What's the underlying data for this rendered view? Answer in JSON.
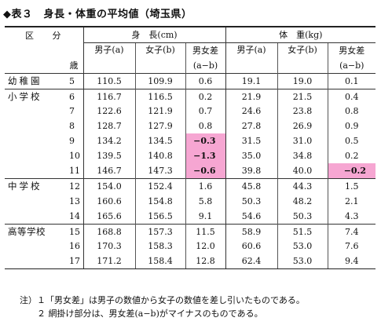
{
  "title": {
    "marker": "◆表３",
    "text": "身長・体重の平均値（埼玉県）"
  },
  "header": {
    "kubun": "区 分",
    "sai": "歳",
    "height_group": "身　長(cm)",
    "weight_group": "体　重(kg)",
    "boys": "男子(a)",
    "girls": "女子(b)",
    "diff": "男女差",
    "diff_sub": "(a−b)"
  },
  "groups": [
    "幼稚園",
    "小学校",
    "中学校",
    "高等学校"
  ],
  "rows": [
    {
      "age": "5",
      "h_boy": "110.5",
      "h_girl": "109.9",
      "h_diff": "0.6",
      "w_boy": "19.1",
      "w_girl": "19.0",
      "w_diff": "0.1"
    },
    {
      "age": "6",
      "h_boy": "116.7",
      "h_girl": "116.5",
      "h_diff": "0.2",
      "w_boy": "21.9",
      "w_girl": "21.5",
      "w_diff": "0.4"
    },
    {
      "age": "7",
      "h_boy": "122.6",
      "h_girl": "121.9",
      "h_diff": "0.7",
      "w_boy": "24.6",
      "w_girl": "23.8",
      "w_diff": "0.8"
    },
    {
      "age": "8",
      "h_boy": "128.7",
      "h_girl": "127.9",
      "h_diff": "0.8",
      "w_boy": "27.8",
      "w_girl": "26.9",
      "w_diff": "0.9"
    },
    {
      "age": "9",
      "h_boy": "134.2",
      "h_girl": "134.5",
      "h_diff": "−0.3",
      "w_boy": "31.5",
      "w_girl": "31.0",
      "w_diff": "0.5"
    },
    {
      "age": "10",
      "h_boy": "139.5",
      "h_girl": "140.8",
      "h_diff": "−1.3",
      "w_boy": "35.0",
      "w_girl": "34.8",
      "w_diff": "0.2"
    },
    {
      "age": "11",
      "h_boy": "146.7",
      "h_girl": "147.3",
      "h_diff": "−0.6",
      "w_boy": "39.8",
      "w_girl": "40.0",
      "w_diff": "−0.2"
    },
    {
      "age": "12",
      "h_boy": "154.0",
      "h_girl": "152.4",
      "h_diff": "1.6",
      "w_boy": "45.8",
      "w_girl": "44.3",
      "w_diff": "1.5"
    },
    {
      "age": "13",
      "h_boy": "160.6",
      "h_girl": "154.8",
      "h_diff": "5.8",
      "w_boy": "50.3",
      "w_girl": "48.2",
      "w_diff": "2.1"
    },
    {
      "age": "14",
      "h_boy": "165.6",
      "h_girl": "156.5",
      "h_diff": "9.1",
      "w_boy": "54.6",
      "w_girl": "50.3",
      "w_diff": "4.3"
    },
    {
      "age": "15",
      "h_boy": "168.8",
      "h_girl": "157.3",
      "h_diff": "11.5",
      "w_boy": "58.9",
      "w_girl": "51.5",
      "w_diff": "7.4"
    },
    {
      "age": "16",
      "h_boy": "170.3",
      "h_girl": "158.3",
      "h_diff": "12.0",
      "w_boy": "60.6",
      "w_girl": "53.0",
      "w_diff": "7.6"
    },
    {
      "age": "17",
      "h_boy": "171.2",
      "h_girl": "158.4",
      "h_diff": "12.8",
      "w_boy": "62.4",
      "w_girl": "53.0",
      "w_diff": "9.4"
    }
  ],
  "highlight_color": "#f6a6d2",
  "notes": {
    "line1": "注）１「男女差」は男子の数値から女子の数値を差し引いたものである。",
    "line2": "２ 網掛け部分は、男女差(a−b)がマイナスのものである。"
  }
}
